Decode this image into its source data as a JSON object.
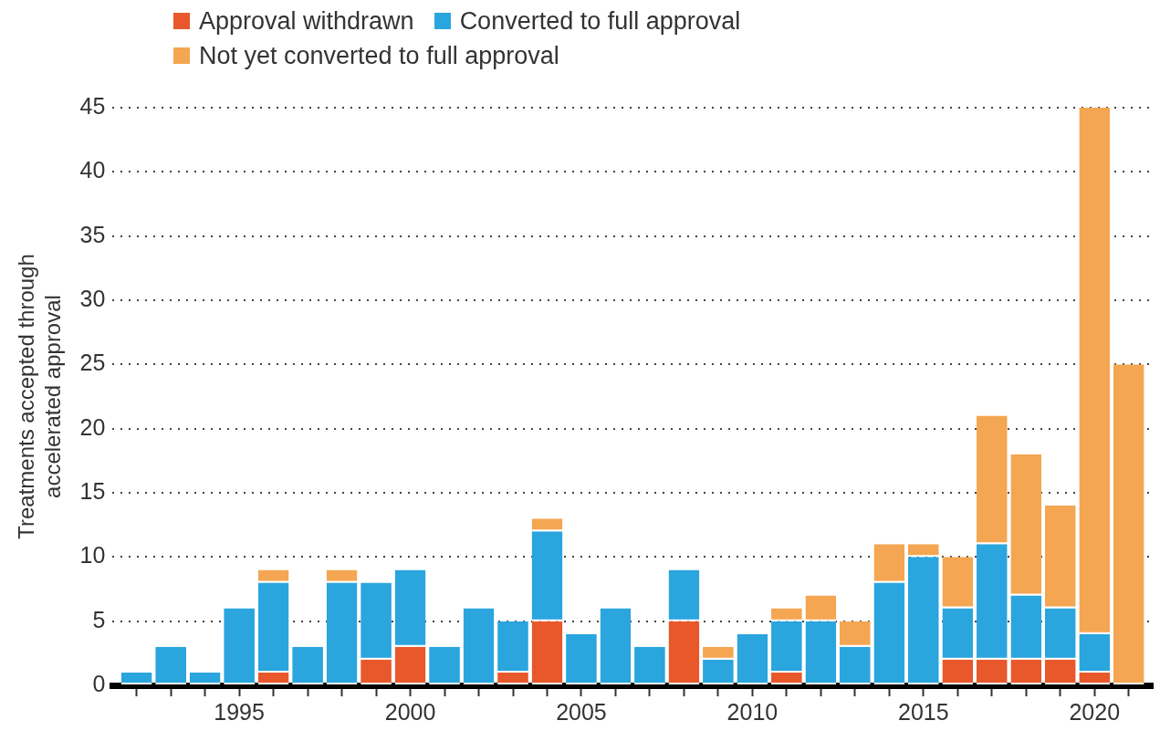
{
  "chart_data": {
    "type": "bar",
    "stacked": true,
    "x": [
      1992,
      1993,
      1994,
      1995,
      1996,
      1997,
      1998,
      1999,
      2000,
      2001,
      2002,
      2003,
      2004,
      2005,
      2006,
      2007,
      2008,
      2009,
      2010,
      2011,
      2012,
      2013,
      2014,
      2015,
      2016,
      2017,
      2018,
      2019,
      2020,
      2021
    ],
    "series": [
      {
        "name": "Approval withdrawn",
        "color": "#e8582a",
        "values": [
          0,
          0,
          0,
          0,
          1,
          0,
          0,
          2,
          3,
          0,
          0,
          1,
          5,
          0,
          0,
          0,
          5,
          0,
          0,
          1,
          0,
          0,
          0,
          0,
          2,
          2,
          2,
          2,
          1,
          0
        ]
      },
      {
        "name": "Converted to full approval",
        "color": "#2aa5de",
        "values": [
          1,
          3,
          1,
          6,
          7,
          3,
          8,
          6,
          6,
          3,
          6,
          4,
          7,
          4,
          6,
          3,
          4,
          2,
          4,
          4,
          5,
          3,
          8,
          10,
          4,
          9,
          5,
          4,
          3,
          0
        ]
      },
      {
        "name": "Not yet converted to full approval",
        "color": "#f4a652",
        "values": [
          0,
          0,
          0,
          0,
          1,
          0,
          1,
          0,
          0,
          0,
          0,
          0,
          1,
          0,
          0,
          0,
          0,
          1,
          0,
          1,
          2,
          2,
          3,
          1,
          4,
          10,
          11,
          8,
          41,
          25
        ]
      }
    ],
    "ylabel": "Treatments accepted through\naccelerated approval",
    "xlim": [
      1991.3,
      2021.7
    ],
    "xticks": [
      {
        "value": 1992,
        "label": null
      },
      {
        "value": 1993,
        "label": null
      },
      {
        "value": 1994,
        "label": null
      },
      1995,
      {
        "value": 1996,
        "label": null
      },
      {
        "value": 1997,
        "label": null
      },
      {
        "value": 1998,
        "label": null
      },
      {
        "value": 1999,
        "label": null
      },
      2000,
      {
        "value": 2001,
        "label": null
      },
      {
        "value": 2002,
        "label": null
      },
      {
        "value": 2003,
        "label": null
      },
      {
        "value": 2004,
        "label": null
      },
      2005,
      {
        "value": 2006,
        "label": null
      },
      {
        "value": 2007,
        "label": null
      },
      {
        "value": 2008,
        "label": null
      },
      {
        "value": 2009,
        "label": null
      },
      2010,
      {
        "value": 2011,
        "label": null
      },
      {
        "value": 2012,
        "label": null
      },
      {
        "value": 2013,
        "label": null
      },
      {
        "value": 2014,
        "label": null
      },
      2015,
      {
        "value": 2016,
        "label": null
      },
      {
        "value": 2017,
        "label": null
      },
      {
        "value": 2018,
        "label": null
      },
      {
        "value": 2019,
        "label": null
      },
      2020,
      {
        "value": 2021,
        "label": null
      }
    ],
    "ylim": [
      0,
      45
    ],
    "yticks": [
      0,
      5,
      10,
      15,
      20,
      25,
      30,
      35,
      40,
      45
    ],
    "grid": "y",
    "legend": "top left"
  }
}
